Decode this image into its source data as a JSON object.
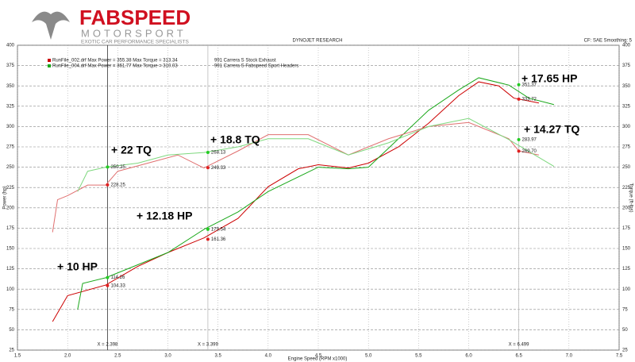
{
  "chart_data": {
    "type": "line",
    "brand": "FABSPEED",
    "brand_sub": "MOTORSPORT",
    "tagline": "EXOTIC CAR PERFORMANCE SPECIALISTS",
    "title": "DYNOJET RESEARCH",
    "settings": "CF: SAE  Smoothing: 5",
    "y_label": "Power (hp)",
    "y2_label": "Torque (ft-lbs)",
    "x_label": "Engine Speed (RPM x1000)",
    "legend_info": [
      "RunFile_002.drf Max Power = 355.38     Max Torque = 313.34",
      "RunFile_004.drf Max Power = 361.77     Max Torque = 310.03"
    ],
    "legend_colors": [
      "#cc0000",
      "#1aa81a"
    ],
    "xlim": [
      1.5,
      7.5
    ],
    "xticks": [
      {
        "value": 1.5,
        "label": "1.5"
      },
      {
        "value": 2,
        "label": "2.0"
      },
      {
        "value": 2.5,
        "label": "2.5"
      },
      {
        "value": 3,
        "label": "3.0"
      },
      {
        "value": 3.5,
        "label": "3.5"
      },
      {
        "value": 4,
        "label": "4.0"
      },
      {
        "value": 4.5,
        "label": "4.5"
      },
      {
        "value": 5,
        "label": "5.0"
      },
      {
        "value": 5.5,
        "label": "5.5"
      },
      {
        "value": 6,
        "label": "6.0"
      },
      {
        "value": 6.5,
        "label": "6.5"
      },
      {
        "value": 7,
        "label": "7.0"
      },
      {
        "value": 7.5,
        "label": "7.5"
      }
    ],
    "ylim": [
      25,
      400
    ],
    "yticks": [
      25,
      50,
      75,
      100,
      125,
      150,
      175,
      200,
      225,
      250,
      275,
      300,
      325,
      350,
      375,
      400
    ],
    "y2lim": [
      25,
      400
    ],
    "y2ticks": [
      25,
      50,
      75,
      100,
      125,
      150,
      175,
      200,
      225,
      250,
      275,
      300,
      325,
      350,
      375,
      400
    ],
    "grid": true,
    "series": [
      {
        "name": "991 Carrera S Stock Exhaust",
        "color": "#cc0000",
        "x": [
          1.85,
          2.0,
          2.38,
          2.7,
          3.0,
          3.36,
          3.7,
          4.0,
          4.3,
          4.5,
          4.8,
          5.0,
          5.3,
          5.6,
          5.9,
          6.1,
          6.3,
          6.45,
          6.7
        ],
        "values": [
          60,
          92,
          105,
          128,
          145,
          163,
          187,
          226,
          248,
          253,
          249,
          255,
          275,
          304,
          338,
          355,
          350,
          335,
          329
        ]
      },
      {
        "name": "991 Carrera S Fabspeed Sport Headers",
        "color": "#1aa81a",
        "x": [
          2.1,
          2.15,
          2.38,
          2.7,
          3.0,
          3.36,
          3.7,
          4.0,
          4.5,
          4.8,
          5.0,
          5.3,
          5.6,
          5.9,
          6.1,
          6.4,
          6.6,
          6.85
        ],
        "values": [
          75,
          107,
          114,
          130,
          145,
          173.5,
          195,
          220,
          250,
          248,
          250,
          285,
          320,
          345,
          360,
          351,
          335,
          327
        ]
      },
      {
        "color": "#e07070",
        "x": [
          1.85,
          1.9,
          2.0,
          2.2,
          2.38,
          2.5,
          2.8,
          3.1,
          3.36,
          3.7,
          4.0,
          4.4,
          4.8,
          5.2,
          5.6,
          6.0,
          6.4,
          6.5,
          6.7
        ],
        "values": [
          170,
          210,
          215,
          228,
          228,
          245,
          255,
          265,
          249,
          270,
          290,
          290,
          265,
          285,
          300,
          305,
          285,
          270,
          265
        ]
      },
      {
        "color": "#7ed87e",
        "x": [
          2.1,
          2.2,
          2.38,
          2.7,
          3.0,
          3.36,
          3.7,
          4.0,
          4.4,
          4.8,
          5.2,
          5.6,
          6.0,
          6.4,
          6.85
        ],
        "values": [
          220,
          245,
          250,
          255,
          265,
          268,
          275,
          285,
          285,
          265,
          280,
          300,
          310,
          284,
          251
        ]
      }
    ],
    "markers": {
      "x": [
        2.398,
        2.398,
        3.399,
        3.399,
        3.399,
        3.399,
        2.398,
        2.398,
        6.499,
        6.499,
        6.499,
        6.499
      ],
      "values": [
        250.25,
        228.25,
        268.13,
        249.33,
        173.54,
        161.36,
        114.26,
        104.33,
        351.37,
        333.72,
        283.97,
        269.7
      ],
      "value_labels": [
        "250.25",
        "228.25",
        "268.13",
        "249.33",
        "173.54",
        "161.36",
        "114.26",
        "104.33",
        "351.37",
        "333.72",
        "283.97",
        "269.70"
      ],
      "colors": [
        "#22cc22",
        "#e02020",
        "#22cc22",
        "#e02020",
        "#22cc22",
        "#e02020",
        "#22cc22",
        "#e02020",
        "#22cc22",
        "#e02020",
        "#22cc22",
        "#e02020"
      ]
    },
    "cursors": [
      {
        "value": 2.398,
        "label": "X = 2.398"
      },
      {
        "value": 3.399,
        "label": "X = 3.399"
      },
      {
        "value": 6.499,
        "label": "X = 6.499"
      }
    ],
    "annotations": [
      "+ 22 TQ",
      "+ 18.8 TQ",
      "+ 12.18 HP",
      "+ 10 HP",
      "+ 17.65 HP",
      "+ 14.27 TQ"
    ]
  }
}
